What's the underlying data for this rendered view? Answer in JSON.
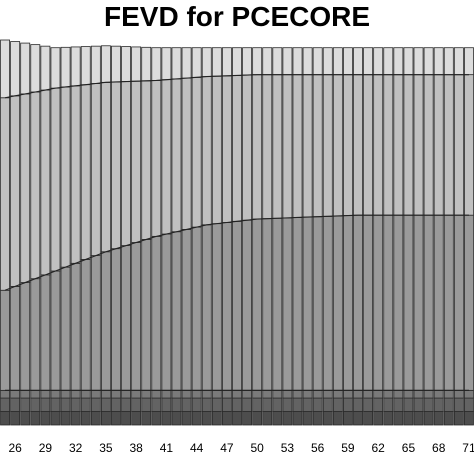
{
  "chart_data": {
    "type": "bar",
    "stacked": true,
    "normalized_to_one": true,
    "title": "FEVD for PCECORE",
    "xlabel": "",
    "ylabel": "",
    "xlim": [
      25,
      71
    ],
    "ylim": [
      0,
      1
    ],
    "grid": false,
    "x_tick_labels": [
      "26",
      "29",
      "32",
      "35",
      "38",
      "41",
      "44",
      "47",
      "50",
      "53",
      "56",
      "59",
      "62",
      "65",
      "68",
      "71"
    ],
    "x_tick_start": 26,
    "x_tick_step": 3,
    "x_start": 25,
    "x_end": 71,
    "series_colors": [
      "#4d4d4d",
      "#636363",
      "#7a7a7a",
      "#9a9a9a",
      "#c0c0c0",
      "#dcdcdc"
    ],
    "series": [
      {
        "x": [
          25,
          30,
          35,
          40,
          45,
          50,
          55,
          60,
          65,
          71
        ],
        "values": [
          0.035,
          0.035,
          0.035,
          0.035,
          0.035,
          0.035,
          0.035,
          0.035,
          0.035,
          0.035
        ]
      },
      {
        "x": [
          25,
          30,
          35,
          40,
          45,
          50,
          55,
          60,
          65,
          71
        ],
        "values": [
          0.035,
          0.035,
          0.035,
          0.035,
          0.035,
          0.035,
          0.035,
          0.035,
          0.035,
          0.035
        ]
      },
      {
        "x": [
          25,
          30,
          35,
          40,
          45,
          50,
          55,
          60,
          65,
          71
        ],
        "values": [
          0.02,
          0.02,
          0.02,
          0.02,
          0.02,
          0.02,
          0.02,
          0.02,
          0.02,
          0.02
        ]
      },
      {
        "x": [
          25,
          30,
          35,
          40,
          45,
          50,
          55,
          60,
          65,
          71
        ],
        "values": [
          0.26,
          0.31,
          0.36,
          0.4,
          0.43,
          0.445,
          0.45,
          0.455,
          0.455,
          0.455
        ]
      },
      {
        "x": [
          25,
          30,
          35,
          40,
          45,
          50,
          55,
          60,
          65,
          71
        ],
        "values": [
          0.5,
          0.475,
          0.44,
          0.405,
          0.385,
          0.375,
          0.37,
          0.365,
          0.365,
          0.365
        ]
      },
      {
        "x": [
          25,
          30,
          35,
          40,
          45,
          50,
          55,
          60,
          65,
          71
        ],
        "values": [
          0.15,
          0.105,
          0.095,
          0.085,
          0.075,
          0.07,
          0.07,
          0.07,
          0.07,
          0.07
        ]
      }
    ]
  }
}
